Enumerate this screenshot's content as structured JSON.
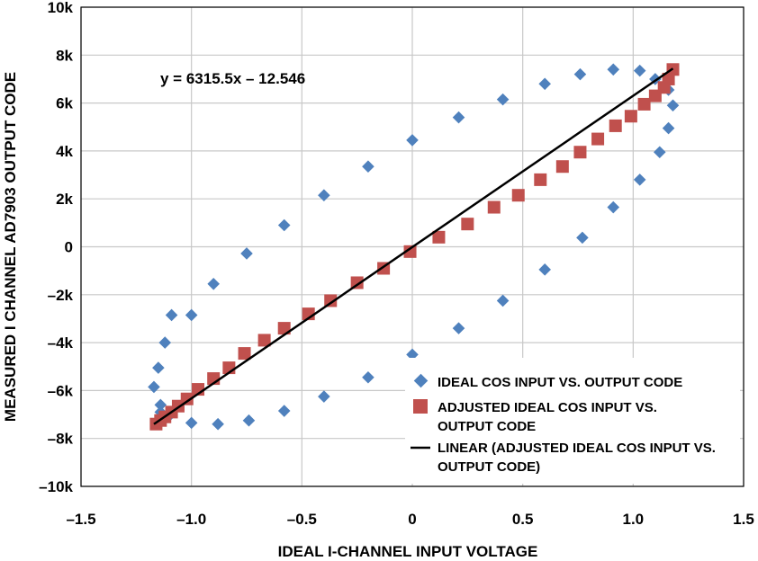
{
  "chart_data": {
    "type": "scatter",
    "xlabel": "IDEAL I-CHANNEL INPUT VOLTAGE",
    "ylabel": "MEASURED I CHANNEL AD7903 OUTPUT CODE",
    "xlim": [
      -1.5,
      1.5
    ],
    "ylim": [
      -10000,
      10000
    ],
    "x_ticks": [
      -1.5,
      -1.0,
      -0.5,
      0,
      0.5,
      1.0,
      1.5
    ],
    "x_tick_labels": [
      "–1.5",
      "–1.0",
      "–0.5",
      "0",
      "0.5",
      "1.0",
      "1.5"
    ],
    "y_ticks": [
      -10000,
      -8000,
      -6000,
      -4000,
      -2000,
      0,
      2000,
      4000,
      6000,
      8000,
      10000
    ],
    "y_tick_labels": [
      "–10k",
      "–8k",
      "–6k",
      "–4k",
      "–2k",
      "0",
      "2k",
      "4k",
      "6k",
      "8k",
      "10k"
    ],
    "grid": true,
    "legend_position": "bottom-right",
    "annotation": "y = 6315.5x – 12.546",
    "series": [
      {
        "name": "IDEAL COS INPUT VS. OUTPUT CODE",
        "marker": "diamond",
        "color": "#4f81bd",
        "x": [
          -1.17,
          -1.15,
          -1.14,
          -1.1,
          -1.0,
          -0.88,
          -0.74,
          -0.58,
          -0.4,
          -0.2,
          0.0,
          0.21,
          0.41,
          0.6,
          0.77,
          0.91,
          1.03,
          1.12,
          1.16,
          1.18,
          -1.14,
          -1.12,
          -1.09,
          -1.0,
          -0.9,
          -0.75,
          -0.58,
          -0.4,
          -0.2,
          0.0,
          0.21,
          0.41,
          0.6,
          0.76,
          0.91,
          1.03,
          1.1,
          1.16
        ],
        "y": [
          -5850,
          -5050,
          -6600,
          -7050,
          -7350,
          -7400,
          -7250,
          -6850,
          -6250,
          -5450,
          -4500,
          -3400,
          -2250,
          -950,
          380,
          1650,
          2800,
          3950,
          4950,
          5900,
          -6900,
          -4000,
          -2850,
          -2850,
          -1550,
          -280,
          900,
          2150,
          3350,
          4450,
          5400,
          6150,
          6800,
          7200,
          7400,
          7350,
          7000,
          6550
        ]
      },
      {
        "name": "ADJUSTED IDEAL COS INPUT VS. OUTPUT CODE",
        "marker": "square",
        "color": "#c0504d",
        "x": [
          -1.16,
          -1.14,
          -1.12,
          -1.09,
          -1.06,
          -1.02,
          -0.97,
          -0.9,
          -0.83,
          -0.76,
          -0.67,
          -0.58,
          -0.47,
          -0.37,
          -0.25,
          -0.13,
          -0.01,
          0.12,
          0.25,
          0.37,
          0.48,
          0.58,
          0.68,
          0.76,
          0.84,
          0.92,
          0.99,
          1.05,
          1.1,
          1.14,
          1.16,
          1.18
        ],
        "y": [
          -7400,
          -7250,
          -7100,
          -6900,
          -6650,
          -6350,
          -5950,
          -5500,
          -5050,
          -4450,
          -3900,
          -3400,
          -2800,
          -2250,
          -1500,
          -900,
          -200,
          400,
          950,
          1650,
          2150,
          2800,
          3350,
          3950,
          4500,
          5050,
          5450,
          5950,
          6300,
          6650,
          7000,
          7400
        ]
      },
      {
        "name": "LINEAR (ADJUSTED IDEAL COS INPUT VS. OUTPUT CODE)",
        "marker": "line",
        "color": "#000000",
        "x": [
          -1.17,
          1.18
        ],
        "y": [
          -7402,
          7440
        ]
      }
    ]
  }
}
